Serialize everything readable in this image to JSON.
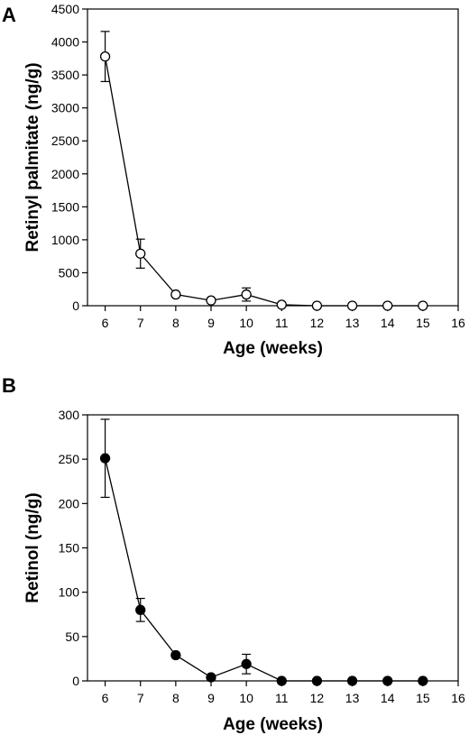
{
  "chart_data": [
    {
      "type": "line",
      "panel_label": "A",
      "xlabel": "Age (weeks)",
      "ylabel": "Retinyl palmitate (ng/g)",
      "xlim": [
        5.5,
        16
      ],
      "ylim": [
        0,
        4500
      ],
      "xticks": [
        6,
        7,
        8,
        9,
        10,
        11,
        12,
        13,
        14,
        15,
        16
      ],
      "yticks": [
        0,
        500,
        1000,
        1500,
        2000,
        2500,
        3000,
        3500,
        4000,
        4500
      ],
      "marker": "open-circle",
      "grid": false,
      "series": [
        {
          "x": [
            6,
            7,
            8,
            9,
            10,
            11,
            12,
            13,
            14,
            15
          ],
          "y": [
            3780,
            790,
            170,
            80,
            170,
            15,
            0,
            0,
            0,
            0
          ],
          "error": [
            380,
            220,
            0,
            0,
            100,
            0,
            0,
            0,
            0,
            0
          ]
        }
      ]
    },
    {
      "type": "line",
      "panel_label": "B",
      "xlabel": "Age (weeks)",
      "ylabel": "Retinol (ng/g)",
      "xlim": [
        5.5,
        16
      ],
      "ylim": [
        0,
        300
      ],
      "xticks": [
        6,
        7,
        8,
        9,
        10,
        11,
        12,
        13,
        14,
        15,
        16
      ],
      "yticks": [
        0,
        50,
        100,
        150,
        200,
        250,
        300
      ],
      "marker": "filled-circle",
      "grid": false,
      "series": [
        {
          "x": [
            6,
            7,
            8,
            9,
            10,
            11,
            12,
            13,
            14,
            15
          ],
          "y": [
            251,
            80,
            29,
            4,
            19,
            0,
            0,
            0,
            0,
            0
          ],
          "error": [
            44,
            13,
            0,
            0,
            11,
            0,
            0,
            0,
            0,
            0
          ]
        }
      ]
    }
  ]
}
